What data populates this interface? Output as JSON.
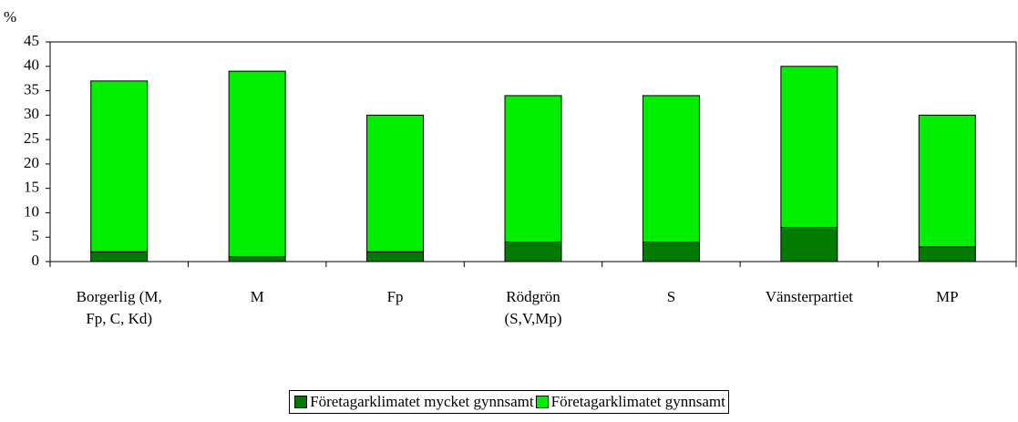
{
  "chart_data": {
    "type": "stacked_bar",
    "y_label": "%",
    "categories": [
      "Borgerlig (M, Fp, C, Kd)",
      "M",
      "Fp",
      "Rödgrön (S,V,Mp)",
      "S",
      "Vänsterpartiet",
      "MP"
    ],
    "series": [
      {
        "name": "Företagarklimatet mycket gynnsamt",
        "color": "#007a00",
        "values": [
          2,
          1,
          2,
          4,
          4,
          7,
          3
        ]
      },
      {
        "name": "Företagarklimatet gynnsamt",
        "color": "#00ee00",
        "values": [
          35,
          38,
          28,
          30,
          30,
          33,
          27
        ]
      }
    ],
    "ylim": [
      0,
      45
    ],
    "yticks": [
      0,
      5,
      10,
      15,
      20,
      25,
      30,
      35,
      40,
      45
    ],
    "grid": false,
    "legend": "bottom"
  }
}
